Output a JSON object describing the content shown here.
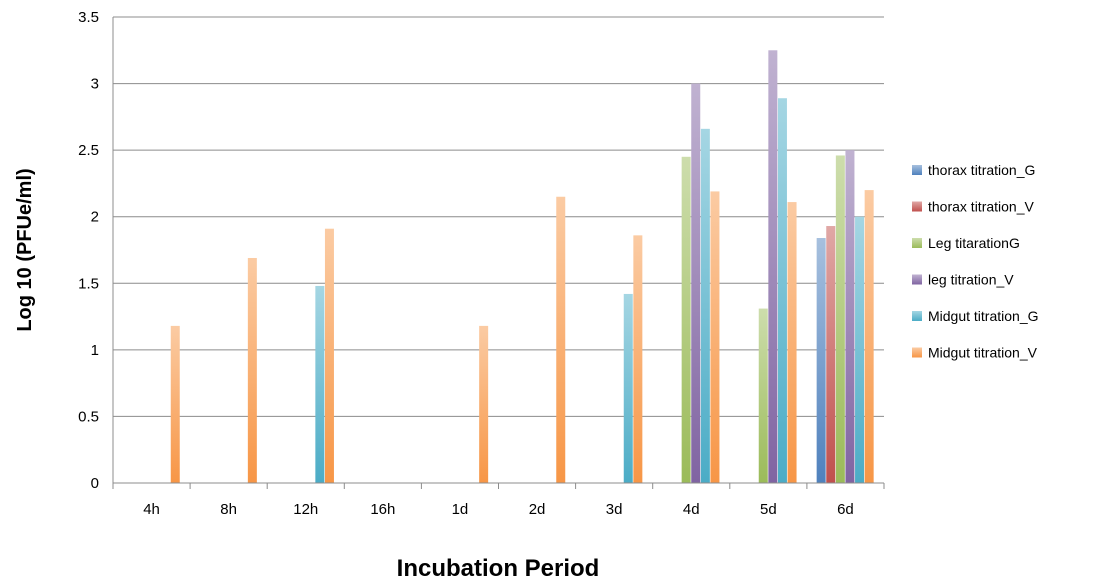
{
  "chart_data": {
    "type": "bar",
    "title": "",
    "xlabel": "Incubation Period",
    "ylabel": "Log 10 (PFUe/ml)",
    "ylim": [
      0,
      3.5
    ],
    "yticks": [
      "0",
      "0.5",
      "1",
      "1.5",
      "2",
      "2.5",
      "3",
      "3.5"
    ],
    "grid": true,
    "legend_position": "right",
    "categories": [
      "4h",
      "8h",
      "12h",
      "16h",
      "1d",
      "2d",
      "3d",
      "4d",
      "5d",
      "6d"
    ],
    "series": [
      {
        "name": "thorax titration_G",
        "color": "#4f81bd",
        "values": [
          0,
          0,
          0,
          0,
          0,
          0,
          0,
          0,
          0,
          1.84
        ]
      },
      {
        "name": "thorax titration_V",
        "color": "#c0504d",
        "values": [
          0,
          0,
          0,
          0,
          0,
          0,
          0,
          0,
          0,
          1.93
        ]
      },
      {
        "name": "Leg titarationG",
        "color": "#9bbb59",
        "values": [
          0,
          0,
          0,
          0,
          0,
          0,
          0,
          2.45,
          1.31,
          2.46
        ]
      },
      {
        "name": "leg titration_V",
        "color": "#8064a2",
        "values": [
          0,
          0,
          0,
          0,
          0,
          0,
          0,
          3.0,
          3.25,
          2.5
        ]
      },
      {
        "name": "Midgut titration_G",
        "color": "#4bacc6",
        "values": [
          0,
          0,
          1.48,
          0,
          0,
          0,
          1.42,
          2.66,
          2.89,
          2.0
        ]
      },
      {
        "name": "Midgut titration_V",
        "color": "#f79646",
        "values": [
          1.18,
          1.69,
          1.91,
          0,
          1.18,
          2.15,
          1.86,
          2.19,
          2.11,
          2.2
        ]
      }
    ]
  }
}
